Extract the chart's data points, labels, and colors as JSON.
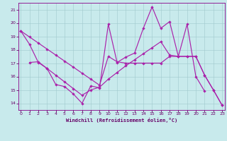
{
  "background_color": "#c8eaec",
  "grid_color": "#a0c8cc",
  "line_color": "#aa22aa",
  "spine_color": "#880088",
  "tick_color": "#660066",
  "xlabel": "Windchill (Refroidissement éolien,°C)",
  "xlim": [
    -0.3,
    23.3
  ],
  "ylim": [
    13.5,
    21.5
  ],
  "yticks": [
    14,
    15,
    16,
    17,
    18,
    19,
    20,
    21
  ],
  "xticks": [
    0,
    1,
    2,
    3,
    4,
    5,
    6,
    7,
    8,
    9,
    10,
    11,
    12,
    13,
    14,
    15,
    16,
    17,
    18,
    19,
    20,
    21,
    22,
    23
  ],
  "line_A_x": [
    0,
    1,
    2,
    3,
    4,
    5,
    6,
    7,
    8,
    9,
    10,
    11,
    12,
    13,
    14,
    15,
    16,
    17,
    18,
    19,
    20,
    21
  ],
  "line_A_y": [
    19.4,
    18.4,
    17.05,
    16.6,
    15.4,
    15.25,
    14.7,
    14.0,
    15.3,
    15.15,
    19.9,
    17.05,
    17.45,
    17.75,
    19.6,
    21.2,
    19.6,
    20.1,
    17.5,
    19.9,
    16.0,
    14.9
  ],
  "line_B_x": [
    0,
    1,
    2,
    3,
    4,
    5,
    6,
    7,
    8,
    9,
    10,
    11,
    12,
    13,
    14,
    15,
    16,
    17,
    18,
    19,
    20,
    21,
    22,
    23
  ],
  "line_B_y": [
    19.4,
    18.95,
    18.5,
    18.05,
    17.6,
    17.15,
    16.7,
    16.25,
    15.8,
    15.35,
    17.5,
    17.1,
    17.0,
    17.0,
    17.0,
    17.0,
    17.0,
    17.5,
    17.5,
    17.5,
    17.5,
    16.1,
    15.0,
    13.85
  ],
  "line_C_x": [
    1,
    2,
    3,
    4,
    5,
    6,
    7,
    8,
    9,
    10,
    11,
    12,
    13,
    14,
    15,
    16,
    17,
    18,
    19,
    20,
    21,
    22,
    23
  ],
  "line_C_y": [
    17.05,
    17.1,
    16.6,
    16.1,
    15.6,
    15.1,
    14.6,
    15.0,
    15.2,
    15.8,
    16.3,
    16.8,
    17.25,
    17.7,
    18.15,
    18.6,
    17.6,
    17.5,
    17.5,
    17.5,
    16.1,
    15.0,
    13.85
  ]
}
